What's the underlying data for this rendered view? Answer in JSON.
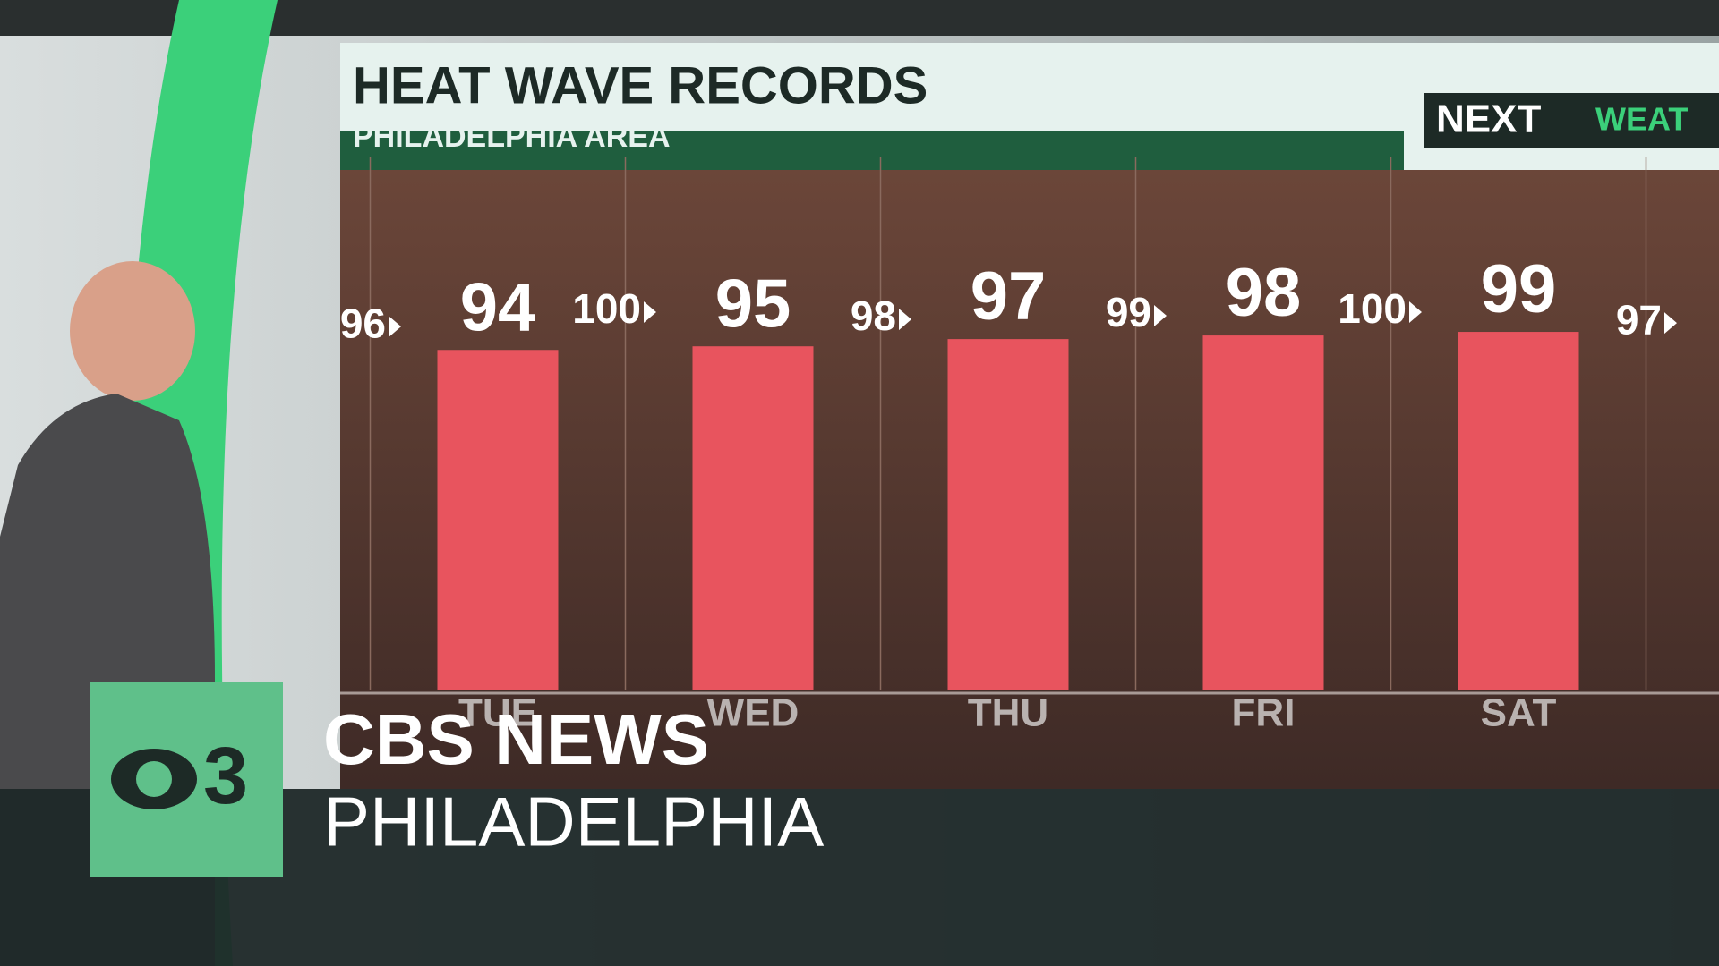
{
  "chart_data": {
    "type": "bar",
    "title": "HEAT WAVE RECORDS",
    "subtitle": "PHILADELPHIA AREA",
    "categories": [
      "TUE",
      "WED",
      "THU",
      "FRI",
      "SAT",
      null
    ],
    "values": [
      94,
      95,
      97,
      98,
      99,
      null
    ],
    "records": [
      96,
      100,
      98,
      99,
      100,
      97
    ],
    "color": "#e8545e",
    "ylim": [
      0,
      100
    ]
  },
  "branding": {
    "show_logo": [
      "NEXT",
      "WEAT"
    ],
    "station_number": "3",
    "network": "CBS NEWS",
    "city": "PHILADELPHIA"
  }
}
